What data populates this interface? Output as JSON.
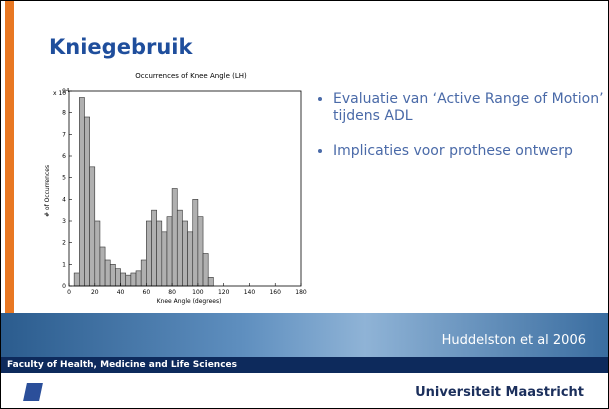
{
  "slide": {
    "title": "Kniegebruik",
    "bullets": [
      "Evaluatie van ‘Active Range of Motion’ tijdens ADL",
      "Implicaties voor prothese ontwerp"
    ],
    "citation": "Huddelston et al 2006"
  },
  "footer": {
    "faculty": "Faculty of Health, Medicine and Life Sciences",
    "university": "Universiteit Maastricht"
  },
  "chart_data": {
    "type": "histogram",
    "title": "Occurrences of Knee Angle (LH)",
    "xlabel": "Knee Angle (degrees)",
    "ylabel": "# of Occurrences",
    "y_multiplier": "x 10",
    "y_multiplier_exponent": "4",
    "bins": [
      4,
      8,
      12,
      16,
      20,
      24,
      28,
      32,
      36,
      40,
      44,
      48,
      52,
      56,
      60,
      64,
      68,
      72,
      76,
      80,
      84,
      88,
      92,
      96,
      100,
      104,
      108,
      112
    ],
    "counts": [
      0.6,
      8.7,
      7.8,
      5.5,
      3.0,
      1.8,
      1.2,
      1.0,
      0.8,
      0.6,
      0.5,
      0.6,
      0.7,
      1.2,
      3.0,
      3.5,
      3.0,
      2.5,
      3.2,
      4.5,
      3.5,
      3.0,
      2.5,
      4.0,
      3.2,
      1.5,
      0.4
    ],
    "color": "#b0b0b0",
    "xlim": [
      0,
      180
    ],
    "xticks": [
      0,
      20,
      40,
      60,
      80,
      100,
      120,
      140,
      160,
      180
    ],
    "ylim": [
      0,
      9
    ],
    "yticks": [
      0,
      1,
      2,
      3,
      4,
      5,
      6,
      7,
      8,
      9
    ]
  }
}
